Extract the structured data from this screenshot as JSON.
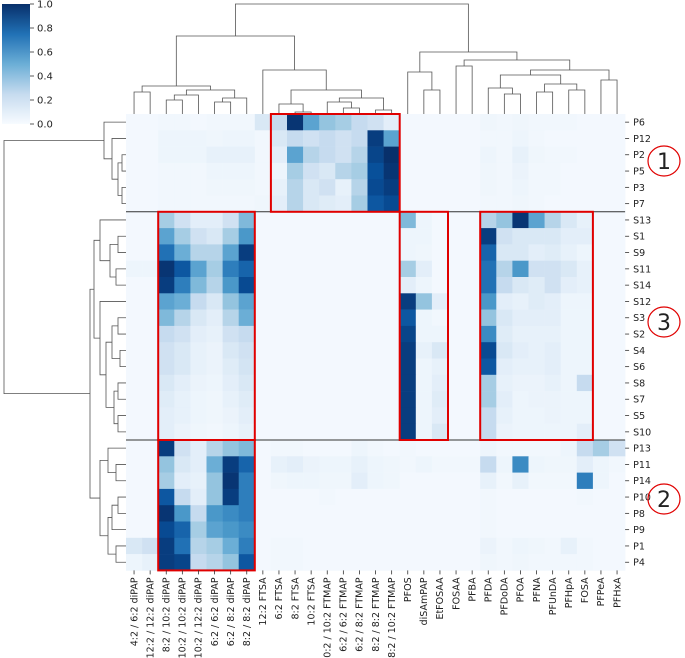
{
  "chart_data": {
    "type": "heatmap",
    "title": "",
    "xlabel": "",
    "ylabel": "",
    "colorbar": {
      "ticks": [
        "0.0",
        "0.2",
        "0.4",
        "0.6",
        "0.8",
        "1.0"
      ],
      "range": [
        0,
        1
      ]
    },
    "columns": [
      "4:2 / 6:2 diPAP",
      "12:2 / 12:2 diPAP",
      "8:2 / 10:2 diPAP",
      "10:2 / 10:2 diPAP",
      "10:2 / 12:2 diPAP",
      "6:2 / 6:2 diPAP",
      "6:2 / 8:2 diPAP",
      "8:2 / 8:2 diPAP",
      "12:2 FTSA",
      "6:2 FTSA",
      "8:2 FTSA",
      "10:2 FTSA",
      "10:2 / 10:2 FTMAP",
      "6:2 / 6:2 FTMAP",
      "6:2 / 8:2 FTMAP",
      "8:2 / 8:2 FTMAP",
      "8:2 / 10:2 FTMAP",
      "PFOS",
      "diSAmPAP",
      "EtFOSAA",
      "FOSAA",
      "PFBA",
      "PFDA",
      "PFDoDA",
      "PFOA",
      "PFNA",
      "PFUnDA",
      "PFHpA",
      "FOSA",
      "PFPeA",
      "PFHxA"
    ],
    "rows": [
      "P6",
      "P12",
      "P2",
      "P5",
      "P3",
      "P7",
      "S13",
      "S1",
      "S9",
      "S11",
      "S14",
      "S12",
      "S3",
      "S2",
      "S4",
      "S6",
      "S8",
      "S7",
      "S5",
      "S10",
      "P13",
      "P11",
      "P14",
      "P10",
      "P8",
      "P9",
      "P1",
      "P4"
    ],
    "values": [
      [
        0.02,
        0.02,
        0.03,
        0.03,
        0.02,
        0.03,
        0.03,
        0.03,
        0.15,
        0.25,
        0.98,
        0.55,
        0.4,
        0.35,
        0.25,
        0.2,
        0.1,
        0.02,
        0.02,
        0.02,
        0.02,
        0.02,
        0.04,
        0.03,
        0.04,
        0.03,
        0.03,
        0.03,
        0.02,
        0.02,
        0.02
      ],
      [
        0.02,
        0.02,
        0.05,
        0.05,
        0.05,
        0.04,
        0.05,
        0.05,
        0.03,
        0.15,
        0.25,
        0.2,
        0.25,
        0.2,
        0.25,
        0.95,
        0.55,
        0.02,
        0.02,
        0.02,
        0.02,
        0.02,
        0.03,
        0.03,
        0.05,
        0.03,
        0.02,
        0.02,
        0.02,
        0.02,
        0.02
      ],
      [
        0.02,
        0.02,
        0.05,
        0.05,
        0.05,
        0.08,
        0.08,
        0.08,
        0.03,
        0.1,
        0.55,
        0.3,
        0.25,
        0.2,
        0.3,
        0.92,
        1.0,
        0.02,
        0.02,
        0.02,
        0.02,
        0.02,
        0.05,
        0.03,
        0.08,
        0.04,
        0.03,
        0.03,
        0.02,
        0.02,
        0.02
      ],
      [
        0.02,
        0.02,
        0.03,
        0.03,
        0.03,
        0.05,
        0.05,
        0.05,
        0.03,
        0.05,
        0.35,
        0.2,
        0.15,
        0.3,
        0.35,
        0.88,
        0.98,
        0.02,
        0.02,
        0.02,
        0.02,
        0.02,
        0.04,
        0.03,
        0.06,
        0.03,
        0.03,
        0.02,
        0.02,
        0.02,
        0.02
      ],
      [
        0.02,
        0.02,
        0.03,
        0.03,
        0.03,
        0.04,
        0.04,
        0.04,
        0.03,
        0.08,
        0.3,
        0.15,
        0.2,
        0.08,
        0.3,
        0.9,
        0.95,
        0.02,
        0.02,
        0.02,
        0.02,
        0.02,
        0.04,
        0.03,
        0.05,
        0.03,
        0.03,
        0.02,
        0.02,
        0.02,
        0.02
      ],
      [
        0.02,
        0.02,
        0.03,
        0.03,
        0.03,
        0.03,
        0.03,
        0.03,
        0.04,
        0.1,
        0.3,
        0.15,
        0.12,
        0.1,
        0.35,
        0.85,
        0.9,
        0.02,
        0.02,
        0.02,
        0.02,
        0.02,
        0.03,
        0.03,
        0.04,
        0.03,
        0.02,
        0.02,
        0.02,
        0.02,
        0.02
      ],
      [
        0.02,
        0.02,
        0.35,
        0.2,
        0.1,
        0.1,
        0.2,
        0.45,
        0.02,
        0.02,
        0.02,
        0.02,
        0.02,
        0.02,
        0.02,
        0.02,
        0.02,
        0.45,
        0.05,
        0.02,
        0.02,
        0.02,
        0.3,
        0.4,
        0.98,
        0.55,
        0.3,
        0.15,
        0.08,
        0.02,
        0.02
      ],
      [
        0.02,
        0.02,
        0.55,
        0.35,
        0.2,
        0.15,
        0.35,
        0.6,
        0.02,
        0.02,
        0.02,
        0.02,
        0.02,
        0.02,
        0.02,
        0.02,
        0.02,
        0.05,
        0.05,
        0.02,
        0.02,
        0.02,
        0.95,
        0.2,
        0.15,
        0.15,
        0.15,
        0.1,
        0.1,
        0.02,
        0.02
      ],
      [
        0.02,
        0.02,
        0.75,
        0.5,
        0.3,
        0.3,
        0.55,
        0.95,
        0.02,
        0.02,
        0.02,
        0.02,
        0.02,
        0.02,
        0.02,
        0.02,
        0.02,
        0.05,
        0.04,
        0.02,
        0.02,
        0.02,
        0.8,
        0.15,
        0.15,
        0.1,
        0.12,
        0.08,
        0.05,
        0.02,
        0.02
      ],
      [
        0.05,
        0.05,
        0.98,
        0.85,
        0.55,
        0.35,
        0.7,
        0.8,
        0.02,
        0.02,
        0.02,
        0.02,
        0.02,
        0.02,
        0.02,
        0.02,
        0.02,
        0.35,
        0.1,
        0.02,
        0.02,
        0.02,
        0.75,
        0.3,
        0.6,
        0.2,
        0.2,
        0.15,
        0.08,
        0.02,
        0.02
      ],
      [
        0.02,
        0.02,
        0.95,
        0.7,
        0.45,
        0.3,
        0.6,
        0.9,
        0.02,
        0.02,
        0.02,
        0.02,
        0.02,
        0.02,
        0.02,
        0.02,
        0.02,
        0.1,
        0.05,
        0.02,
        0.02,
        0.02,
        0.75,
        0.25,
        0.15,
        0.12,
        0.2,
        0.1,
        0.08,
        0.02,
        0.02
      ],
      [
        0.02,
        0.02,
        0.55,
        0.5,
        0.25,
        0.15,
        0.4,
        0.55,
        0.02,
        0.02,
        0.02,
        0.02,
        0.02,
        0.02,
        0.02,
        0.02,
        0.02,
        0.95,
        0.4,
        0.1,
        0.02,
        0.02,
        0.6,
        0.1,
        0.08,
        0.12,
        0.1,
        0.05,
        0.05,
        0.02,
        0.02
      ],
      [
        0.02,
        0.02,
        0.45,
        0.3,
        0.15,
        0.1,
        0.3,
        0.5,
        0.02,
        0.02,
        0.02,
        0.02,
        0.02,
        0.02,
        0.02,
        0.02,
        0.02,
        0.85,
        0.05,
        0.03,
        0.02,
        0.02,
        0.4,
        0.15,
        0.1,
        0.1,
        0.1,
        0.05,
        0.05,
        0.02,
        0.02
      ],
      [
        0.02,
        0.02,
        0.25,
        0.2,
        0.1,
        0.08,
        0.2,
        0.25,
        0.02,
        0.02,
        0.02,
        0.02,
        0.02,
        0.02,
        0.02,
        0.02,
        0.02,
        0.92,
        0.05,
        0.05,
        0.02,
        0.02,
        0.65,
        0.12,
        0.08,
        0.08,
        0.08,
        0.05,
        0.05,
        0.02,
        0.02
      ],
      [
        0.02,
        0.02,
        0.2,
        0.15,
        0.08,
        0.06,
        0.15,
        0.2,
        0.02,
        0.02,
        0.02,
        0.02,
        0.02,
        0.02,
        0.02,
        0.02,
        0.02,
        0.95,
        0.08,
        0.15,
        0.02,
        0.02,
        0.9,
        0.15,
        0.1,
        0.08,
        0.1,
        0.05,
        0.05,
        0.02,
        0.02
      ],
      [
        0.02,
        0.02,
        0.2,
        0.15,
        0.08,
        0.06,
        0.12,
        0.18,
        0.02,
        0.02,
        0.02,
        0.02,
        0.02,
        0.02,
        0.02,
        0.02,
        0.02,
        0.95,
        0.05,
        0.08,
        0.02,
        0.02,
        0.85,
        0.1,
        0.08,
        0.08,
        0.1,
        0.05,
        0.05,
        0.02,
        0.02
      ],
      [
        0.02,
        0.02,
        0.15,
        0.1,
        0.06,
        0.05,
        0.1,
        0.15,
        0.02,
        0.02,
        0.02,
        0.02,
        0.02,
        0.02,
        0.02,
        0.02,
        0.02,
        0.95,
        0.05,
        0.1,
        0.02,
        0.02,
        0.35,
        0.08,
        0.06,
        0.06,
        0.08,
        0.05,
        0.25,
        0.02,
        0.02
      ],
      [
        0.02,
        0.02,
        0.12,
        0.08,
        0.05,
        0.04,
        0.08,
        0.12,
        0.02,
        0.02,
        0.02,
        0.02,
        0.02,
        0.02,
        0.02,
        0.02,
        0.02,
        0.95,
        0.05,
        0.12,
        0.02,
        0.02,
        0.35,
        0.1,
        0.05,
        0.06,
        0.06,
        0.05,
        0.05,
        0.02,
        0.02
      ],
      [
        0.02,
        0.02,
        0.1,
        0.08,
        0.05,
        0.04,
        0.06,
        0.1,
        0.02,
        0.02,
        0.02,
        0.02,
        0.02,
        0.02,
        0.02,
        0.02,
        0.02,
        0.95,
        0.05,
        0.1,
        0.02,
        0.02,
        0.25,
        0.08,
        0.05,
        0.05,
        0.06,
        0.05,
        0.05,
        0.02,
        0.02
      ],
      [
        0.02,
        0.02,
        0.1,
        0.06,
        0.04,
        0.03,
        0.05,
        0.08,
        0.02,
        0.02,
        0.02,
        0.02,
        0.02,
        0.02,
        0.02,
        0.02,
        0.02,
        0.95,
        0.05,
        0.15,
        0.02,
        0.02,
        0.25,
        0.06,
        0.05,
        0.05,
        0.05,
        0.05,
        0.1,
        0.02,
        0.02
      ],
      [
        0.02,
        0.02,
        0.95,
        0.2,
        0.1,
        0.3,
        0.4,
        0.45,
        0.02,
        0.03,
        0.03,
        0.02,
        0.02,
        0.02,
        0.05,
        0.03,
        0.02,
        0.03,
        0.02,
        0.02,
        0.02,
        0.02,
        0.05,
        0.03,
        0.03,
        0.03,
        0.03,
        0.05,
        0.25,
        0.35,
        0.2
      ],
      [
        0.02,
        0.02,
        0.4,
        0.15,
        0.1,
        0.5,
        0.95,
        0.8,
        0.02,
        0.08,
        0.1,
        0.06,
        0.05,
        0.05,
        0.08,
        0.05,
        0.04,
        0.03,
        0.05,
        0.03,
        0.03,
        0.03,
        0.25,
        0.05,
        0.65,
        0.05,
        0.04,
        0.04,
        0.1,
        0.05,
        0.03
      ],
      [
        0.02,
        0.02,
        0.35,
        0.1,
        0.08,
        0.4,
        0.98,
        0.7,
        0.02,
        0.04,
        0.05,
        0.05,
        0.04,
        0.04,
        0.1,
        0.05,
        0.04,
        0.02,
        0.02,
        0.02,
        0.02,
        0.02,
        0.08,
        0.03,
        0.08,
        0.03,
        0.03,
        0.03,
        0.7,
        0.05,
        0.02
      ],
      [
        0.02,
        0.02,
        0.85,
        0.25,
        0.1,
        0.4,
        0.95,
        0.7,
        0.02,
        0.02,
        0.02,
        0.02,
        0.03,
        0.02,
        0.02,
        0.02,
        0.02,
        0.02,
        0.02,
        0.02,
        0.02,
        0.02,
        0.03,
        0.02,
        0.02,
        0.02,
        0.02,
        0.02,
        0.03,
        0.02,
        0.02
      ],
      [
        0.02,
        0.02,
        0.98,
        0.6,
        0.25,
        0.6,
        0.65,
        0.7,
        0.02,
        0.02,
        0.02,
        0.02,
        0.02,
        0.02,
        0.02,
        0.02,
        0.02,
        0.02,
        0.02,
        0.02,
        0.02,
        0.02,
        0.03,
        0.02,
        0.02,
        0.02,
        0.02,
        0.02,
        0.02,
        0.02,
        0.02
      ],
      [
        0.02,
        0.02,
        0.9,
        0.8,
        0.35,
        0.55,
        0.6,
        0.65,
        0.02,
        0.02,
        0.02,
        0.02,
        0.02,
        0.02,
        0.02,
        0.02,
        0.02,
        0.02,
        0.02,
        0.02,
        0.02,
        0.02,
        0.03,
        0.02,
        0.02,
        0.02,
        0.02,
        0.02,
        0.02,
        0.02,
        0.02
      ],
      [
        0.15,
        0.2,
        0.95,
        0.75,
        0.3,
        0.35,
        0.5,
        0.7,
        0.02,
        0.03,
        0.03,
        0.02,
        0.02,
        0.02,
        0.02,
        0.02,
        0.02,
        0.02,
        0.02,
        0.02,
        0.02,
        0.02,
        0.06,
        0.03,
        0.05,
        0.04,
        0.03,
        0.08,
        0.03,
        0.02,
        0.02
      ],
      [
        0.05,
        0.08,
        0.95,
        0.92,
        0.25,
        0.3,
        0.4,
        0.85,
        0.02,
        0.03,
        0.03,
        0.02,
        0.02,
        0.02,
        0.02,
        0.02,
        0.02,
        0.02,
        0.02,
        0.02,
        0.02,
        0.02,
        0.04,
        0.03,
        0.04,
        0.03,
        0.03,
        0.03,
        0.03,
        0.02,
        0.02
      ]
    ],
    "cluster_labels": [
      "1",
      "3",
      "2"
    ]
  }
}
